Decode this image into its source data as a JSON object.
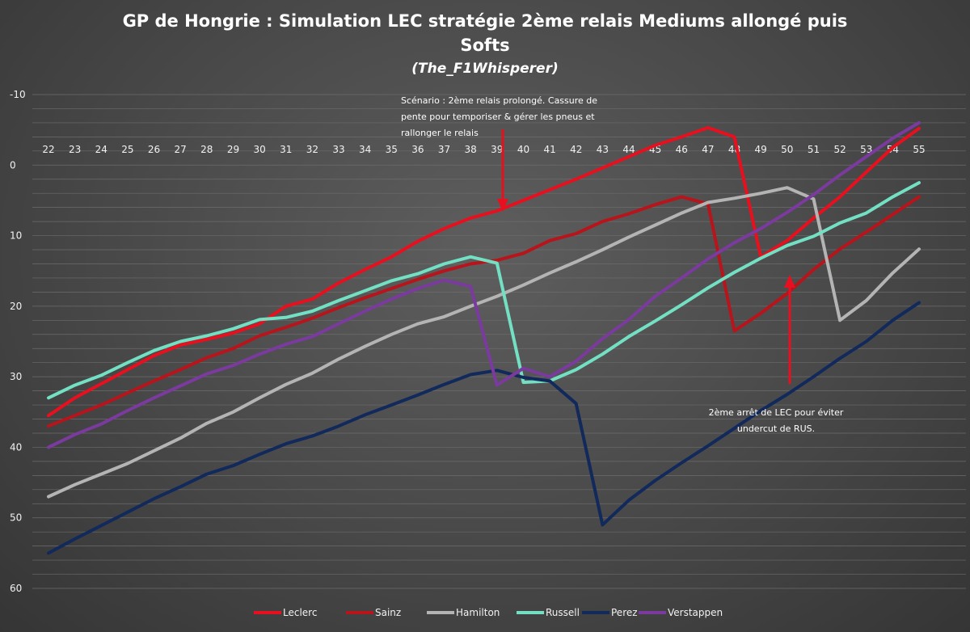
{
  "chart_data": {
    "type": "line",
    "title_line1": "GP de Hongrie : Simulation LEC stratégie 2ème relais Mediums allongé puis",
    "title_line2": "Softs",
    "subtitle": "(The_F1Whisperer)",
    "x": [
      22,
      23,
      24,
      25,
      26,
      27,
      28,
      29,
      30,
      31,
      32,
      33,
      34,
      35,
      36,
      37,
      38,
      39,
      40,
      41,
      42,
      43,
      44,
      45,
      46,
      47,
      48,
      49,
      50,
      51,
      52,
      53,
      54,
      55
    ],
    "y_ticks": [
      -10,
      0,
      10,
      20,
      30,
      40,
      50,
      60
    ],
    "ylim": [
      -10,
      60
    ],
    "y_inverted": true,
    "grid": true,
    "legend_position": "bottom",
    "series": [
      {
        "name": "Leclerc",
        "color": "#e8101e",
        "values": [
          35.5,
          33,
          31,
          29,
          27,
          25.5,
          24.7,
          23.8,
          22.5,
          20,
          19,
          16.7,
          14.8,
          13,
          10.8,
          9,
          7.5,
          6.5,
          5,
          3.5,
          2,
          0.4,
          -1.2,
          -2.8,
          -4,
          -5.3,
          -4,
          13,
          10.7,
          7.5,
          4.5,
          1,
          -2.5,
          -5.2
        ]
      },
      {
        "name": "Sainz",
        "color": "#b8141b",
        "values": [
          37,
          35.5,
          34,
          32.3,
          30.6,
          29,
          27.3,
          26,
          24.2,
          23,
          21.7,
          20.2,
          18.8,
          17.5,
          16.2,
          15,
          14,
          13.5,
          12.5,
          10.7,
          9.7,
          8,
          6.9,
          5.6,
          4.5,
          5.5,
          23.5,
          21,
          18.2,
          14.8,
          11.9,
          9.5,
          7,
          4.5
        ]
      },
      {
        "name": "Hamilton",
        "color": "#b4b4b4",
        "values": [
          47,
          45.3,
          43.8,
          42.3,
          40.5,
          38.7,
          36.6,
          35,
          33,
          31.1,
          29.5,
          27.5,
          25.7,
          24,
          22.5,
          21.5,
          20,
          18.6,
          17,
          15.3,
          13.7,
          12,
          10.2,
          8.5,
          6.8,
          5.3,
          4.7,
          4,
          3.2,
          4.8,
          22,
          19.2,
          15.3,
          11.9
        ]
      },
      {
        "name": "Russell",
        "color": "#73e0c3",
        "values": [
          33,
          31.2,
          29.8,
          28,
          26.3,
          25,
          24.2,
          23.2,
          21.9,
          21.6,
          20.7,
          19.2,
          17.8,
          16.4,
          15.4,
          14,
          13,
          13.9,
          30.8,
          30.6,
          29,
          26.8,
          24.3,
          22.1,
          19.8,
          17.4,
          15.2,
          13.2,
          11.4,
          10.1,
          8.2,
          6.8,
          4.5,
          2.5
        ]
      },
      {
        "name": "Perez",
        "color": "#12295c",
        "values": [
          55,
          53,
          51.1,
          49.2,
          47.3,
          45.6,
          43.8,
          42.6,
          41,
          39.5,
          38.4,
          37,
          35.4,
          34,
          32.6,
          31.1,
          29.7,
          29.1,
          30.1,
          30.6,
          33.8,
          51,
          47.5,
          44.7,
          42.2,
          39.8,
          37.3,
          34.8,
          32.5,
          30,
          27.4,
          25,
          22,
          19.5
        ]
      },
      {
        "name": "Verstappen",
        "color": "#7a3a9e",
        "values": [
          40,
          38.2,
          36.7,
          34.8,
          33,
          31.3,
          29.6,
          28.4,
          26.8,
          25.4,
          24.3,
          22.5,
          20.7,
          19,
          17.5,
          16.3,
          17.2,
          31.2,
          28.8,
          30,
          27.8,
          24.6,
          21.9,
          18.6,
          16,
          13.3,
          11,
          9,
          6.7,
          4.2,
          1.4,
          -1.2,
          -3.8,
          -6
        ]
      }
    ],
    "annotations": [
      {
        "text_lines": [
          "Scénario : 2ème relais prolongé. Cassure de",
          "pente pour temporiser & gérer les pneus et",
          "rallonger le relais"
        ]
      },
      {
        "text_lines": [
          "2ème arrêt de LEC pour éviter",
          "undercut de RUS."
        ]
      }
    ]
  }
}
